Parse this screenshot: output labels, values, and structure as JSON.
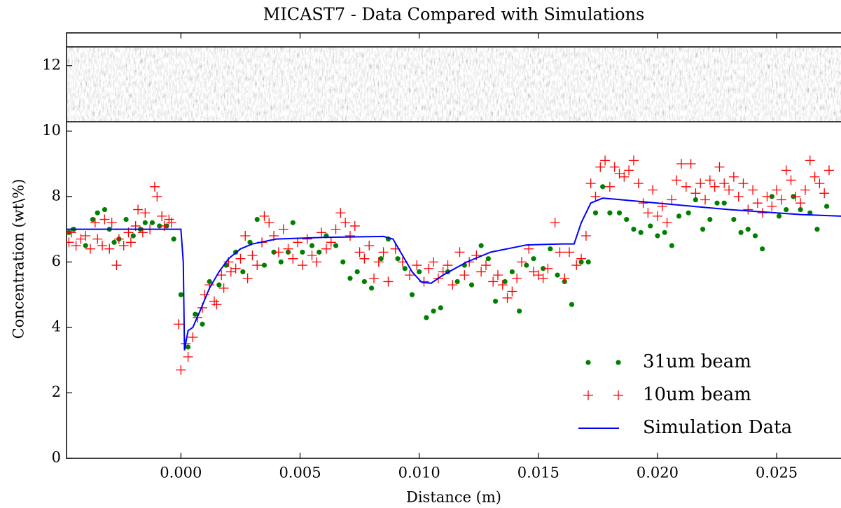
{
  "chart_data": {
    "type": "scatter",
    "title": "MICAST7 - Data Compared with Simulations",
    "x_label": "Distance (m)",
    "y_label": "Concentration (wt\\%)",
    "xlim": [
      -0.0048,
      0.0277
    ],
    "ylim": [
      0,
      13
    ],
    "xticks": [
      {
        "value": 0,
        "label": "0.000"
      },
      {
        "value": 0.005,
        "label": "0.005"
      },
      {
        "value": 0.01,
        "label": "0.010"
      },
      {
        "value": 0.015,
        "label": "0.015"
      },
      {
        "value": 0.02,
        "label": "0.020"
      },
      {
        "value": 0.025,
        "label": "0.025"
      }
    ],
    "yticks": [
      0,
      2,
      4,
      6,
      8,
      10,
      12
    ],
    "legend": "lower right",
    "series": [
      {
        "name": "31um beam",
        "type": "scatter",
        "marker": "dot",
        "color": "#008000",
        "x": [
          -0.0047,
          -0.0045,
          -0.004,
          -0.0037,
          -0.0035,
          -0.0032,
          -0.003,
          -0.0028,
          -0.0026,
          -0.0023,
          -0.002,
          -0.0017,
          -0.0015,
          -0.0012,
          -0.0009,
          -0.0006,
          -0.0003,
          0,
          0.0003,
          0.0006,
          0.0009,
          0.0012,
          0.0016,
          0.0019,
          0.0023,
          0.0026,
          0.0029,
          0.0032,
          0.0035,
          0.0039,
          0.0042,
          0.0045,
          0.0047,
          0.0051,
          0.0055,
          0.0058,
          0.0061,
          0.0065,
          0.0068,
          0.0071,
          0.0074,
          0.0077,
          0.008,
          0.0084,
          0.0087,
          0.0091,
          0.0094,
          0.0097,
          0.01,
          0.0103,
          0.0106,
          0.0109,
          0.0112,
          0.0116,
          0.0119,
          0.0122,
          0.0126,
          0.0129,
          0.0132,
          0.0136,
          0.0139,
          0.0142,
          0.0145,
          0.0148,
          0.0152,
          0.0155,
          0.0158,
          0.0161,
          0.0164,
          0.0168,
          0.0171,
          0.0174,
          0.0177,
          0.018,
          0.0184,
          0.0187,
          0.019,
          0.0193,
          0.0197,
          0.02,
          0.0203,
          0.0206,
          0.0209,
          0.0213,
          0.0216,
          0.0219,
          0.0222,
          0.0225,
          0.0228,
          0.0232,
          0.0235,
          0.0238,
          0.0241,
          0.0244,
          0.0248,
          0.0251,
          0.0254,
          0.0257,
          0.026,
          0.0264,
          0.0267,
          0.0271
        ],
        "values": [
          6.9,
          7.0,
          6.5,
          7.3,
          7.5,
          7.6,
          7.0,
          6.6,
          6.7,
          7.3,
          6.8,
          7.0,
          7.2,
          7.2,
          7.1,
          7.1,
          6.7,
          5.0,
          3.4,
          4.4,
          4.1,
          5.4,
          5.3,
          5.9,
          6.3,
          5.7,
          6.6,
          7.3,
          5.9,
          6.3,
          6.0,
          6.3,
          7.2,
          6.3,
          6.5,
          6.3,
          6.8,
          6.5,
          6.0,
          5.5,
          5.7,
          5.4,
          5.2,
          6.1,
          6.7,
          6.1,
          5.8,
          5.0,
          5.7,
          4.3,
          4.5,
          4.6,
          5.7,
          5.4,
          5.9,
          5.3,
          6.5,
          6.1,
          4.8,
          5.4,
          5.7,
          4.5,
          5.9,
          6.1,
          5.8,
          6.4,
          5.6,
          5.4,
          4.7,
          6.0,
          6.0,
          7.5,
          8.3,
          7.5,
          7.5,
          7.3,
          7.0,
          6.9,
          7.1,
          6.8,
          6.9,
          6.5,
          7.4,
          7.5,
          7.9,
          7.0,
          7.3,
          7.8,
          7.8,
          7.3,
          6.9,
          7.0,
          6.8,
          6.4,
          8.0,
          7.4,
          7.6,
          8.0,
          7.6,
          7.5,
          7.0,
          7.7
        ]
      },
      {
        "name": "10um beam",
        "type": "scatter",
        "marker": "plus",
        "color": "#ff0000",
        "x": [
          -0.0047,
          -0.0046,
          -0.0044,
          -0.0042,
          -0.004,
          -0.0038,
          -0.0036,
          -0.0035,
          -0.0033,
          -0.0032,
          -0.003,
          -0.0029,
          -0.0027,
          -0.0026,
          -0.0024,
          -0.0022,
          -0.0021,
          -0.0019,
          -0.0018,
          -0.0016,
          -0.0015,
          -0.0013,
          -0.0011,
          -0.001,
          -0.0008,
          -0.0007,
          -0.0005,
          -0.0004,
          -0.0001,
          0,
          0.0002,
          0.0003,
          0.0005,
          0.0007,
          0.0009,
          0.001,
          0.0012,
          0.0014,
          0.0015,
          0.0017,
          0.0018,
          0.002,
          0.0021,
          0.0023,
          0.0025,
          0.0027,
          0.0028,
          0.003,
          0.0032,
          0.0034,
          0.0035,
          0.0037,
          0.0039,
          0.0041,
          0.0043,
          0.0045,
          0.0047,
          0.0049,
          0.0051,
          0.0053,
          0.0055,
          0.0057,
          0.0059,
          0.0061,
          0.0063,
          0.0065,
          0.0067,
          0.0069,
          0.0071,
          0.0073,
          0.0075,
          0.0077,
          0.0079,
          0.0081,
          0.0083,
          0.0085,
          0.0087,
          0.009,
          0.0093,
          0.0096,
          0.0099,
          0.0102,
          0.0104,
          0.0106,
          0.0108,
          0.011,
          0.0112,
          0.0114,
          0.0117,
          0.0119,
          0.0121,
          0.0124,
          0.0126,
          0.0128,
          0.0131,
          0.0133,
          0.0135,
          0.0137,
          0.0139,
          0.0141,
          0.0143,
          0.0146,
          0.0148,
          0.015,
          0.0152,
          0.0154,
          0.0157,
          0.0159,
          0.0161,
          0.0163,
          0.0166,
          0.0168,
          0.017,
          0.0172,
          0.0174,
          0.0176,
          0.0178,
          0.018,
          0.0182,
          0.0184,
          0.0186,
          0.0188,
          0.019,
          0.0192,
          0.0194,
          0.0196,
          0.0198,
          0.02,
          0.0202,
          0.0204,
          0.0206,
          0.0208,
          0.021,
          0.0212,
          0.0214,
          0.0216,
          0.0218,
          0.022,
          0.0222,
          0.0224,
          0.0226,
          0.0228,
          0.023,
          0.0232,
          0.0234,
          0.0236,
          0.0238,
          0.024,
          0.0242,
          0.0244,
          0.0246,
          0.0248,
          0.025,
          0.0252,
          0.0254,
          0.0256,
          0.0258,
          0.026,
          0.0262,
          0.0264,
          0.0266,
          0.0268,
          0.027,
          0.0272
        ],
        "values": [
          6.6,
          6.9,
          6.5,
          6.7,
          6.8,
          6.4,
          7.2,
          6.7,
          6.5,
          7.3,
          6.4,
          7.2,
          5.9,
          6.7,
          6.5,
          6.9,
          6.6,
          7.1,
          7.6,
          6.9,
          7.5,
          7.0,
          8.3,
          8.0,
          7.4,
          7.1,
          7.3,
          7.2,
          4.1,
          2.7,
          3.5,
          3.1,
          3.7,
          4.3,
          4.6,
          5.0,
          5.3,
          4.8,
          4.7,
          5.6,
          5.2,
          6.0,
          5.7,
          5.8,
          6.1,
          6.8,
          5.5,
          6.2,
          5.9,
          6.6,
          7.4,
          7.2,
          6.8,
          6.3,
          7.0,
          6.4,
          6.1,
          6.6,
          5.9,
          6.7,
          6.2,
          6.0,
          6.9,
          6.4,
          6.6,
          7.0,
          7.5,
          7.2,
          6.8,
          7.1,
          6.3,
          6.1,
          6.5,
          5.5,
          6.0,
          6.3,
          5.4,
          6.4,
          6.0,
          5.6,
          5.9,
          5.4,
          5.8,
          6.0,
          5.5,
          5.7,
          5.9,
          5.3,
          6.3,
          5.6,
          6.0,
          6.2,
          5.7,
          5.9,
          5.4,
          5.6,
          5.3,
          4.9,
          5.1,
          5.5,
          6.0,
          6.4,
          5.7,
          5.6,
          5.5,
          5.8,
          7.2,
          6.3,
          5.5,
          6.3,
          5.9,
          6.1,
          6.8,
          8.4,
          8.0,
          8.9,
          9.1,
          8.3,
          8.9,
          8.7,
          8.6,
          8.8,
          9.1,
          8.4,
          7.8,
          7.5,
          8.2,
          7.4,
          7.7,
          7.2,
          7.9,
          8.5,
          9.0,
          8.3,
          9.0,
          8.1,
          8.4,
          7.9,
          8.5,
          8.3,
          8.9,
          8.4,
          8.2,
          8.6,
          8.0,
          8.4,
          7.6,
          8.2,
          7.8,
          7.5,
          8.0,
          7.7,
          8.2,
          7.9,
          8.8,
          8.5,
          8.0,
          7.8,
          8.2,
          9.1,
          8.6,
          8.4,
          8.1,
          8.8
        ]
      },
      {
        "name": "Simulation Data",
        "type": "line",
        "color": "#0000ff",
        "x": [
          -0.0048,
          0,
          0.0001,
          0.00015,
          0.0003,
          0.0005,
          0.0008,
          0.0012,
          0.0016,
          0.002,
          0.0025,
          0.003,
          0.004,
          0.006,
          0.0085,
          0.0089,
          0.0093,
          0.0097,
          0.0101,
          0.0105,
          0.011,
          0.012,
          0.013,
          0.0145,
          0.016,
          0.0165,
          0.0168,
          0.0172,
          0.0177,
          0.0185,
          0.02,
          0.023,
          0.026,
          0.0277
        ],
        "values": [
          7.0,
          7.0,
          6.0,
          3.3,
          3.9,
          4.0,
          4.5,
          5.2,
          5.7,
          6.1,
          6.4,
          6.55,
          6.7,
          6.75,
          6.78,
          6.7,
          6.2,
          5.7,
          5.38,
          5.35,
          5.6,
          6.0,
          6.3,
          6.52,
          6.55,
          6.55,
          7.2,
          7.8,
          7.95,
          7.9,
          7.8,
          7.6,
          7.45,
          7.4
        ]
      }
    ]
  }
}
